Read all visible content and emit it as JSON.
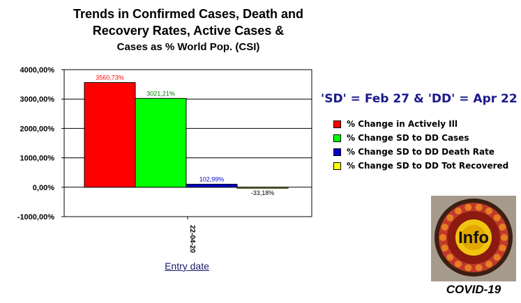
{
  "header": {
    "title_line1": "Trends in Confirmed Cases, Death and",
    "title_line2": "Recovery Rates, Active Cases &",
    "title_line3": "Cases as % World Pop. (CSI)"
  },
  "subtitle": "'SD' = Feb 27 & 'DD' = Apr 22",
  "chart_data": {
    "type": "bar",
    "categories": [
      "22-04-20"
    ],
    "series": [
      {
        "name": "% Change in Actively Ill",
        "values": [
          3560.73
        ],
        "label": "3560,73%",
        "color": "#ff0000"
      },
      {
        "name": "% Change SD to DD Cases",
        "values": [
          3021.21
        ],
        "label": "3021,21%",
        "color": "#00ff00"
      },
      {
        "name": "% Change SD to DD Death Rate",
        "values": [
          102.99
        ],
        "label": "102,99%",
        "color": "#0000cc"
      },
      {
        "name": "% Change SD to DD Tot Recovered",
        "values": [
          -33.18
        ],
        "label": "-33,18%",
        "color": "#ffff00"
      }
    ],
    "xlabel": "Entry date",
    "ylabel": "",
    "ylim": [
      -1000,
      4000
    ],
    "yticks": [
      {
        "value": 4000,
        "label": "4000,00%"
      },
      {
        "value": 3000,
        "label": "3000,00%"
      },
      {
        "value": 2000,
        "label": "2000,00%"
      },
      {
        "value": 1000,
        "label": "1000,00%"
      },
      {
        "value": 0,
        "label": "0,00%"
      },
      {
        "value": -1000,
        "label": "-1000,00%"
      }
    ],
    "grid": true,
    "legend": "right"
  },
  "logo": {
    "text": "Info",
    "caption": "COVID-19",
    "colors": {
      "ring": "#c0392b",
      "center": "#f1c40f",
      "background": "#a59a8c"
    }
  }
}
